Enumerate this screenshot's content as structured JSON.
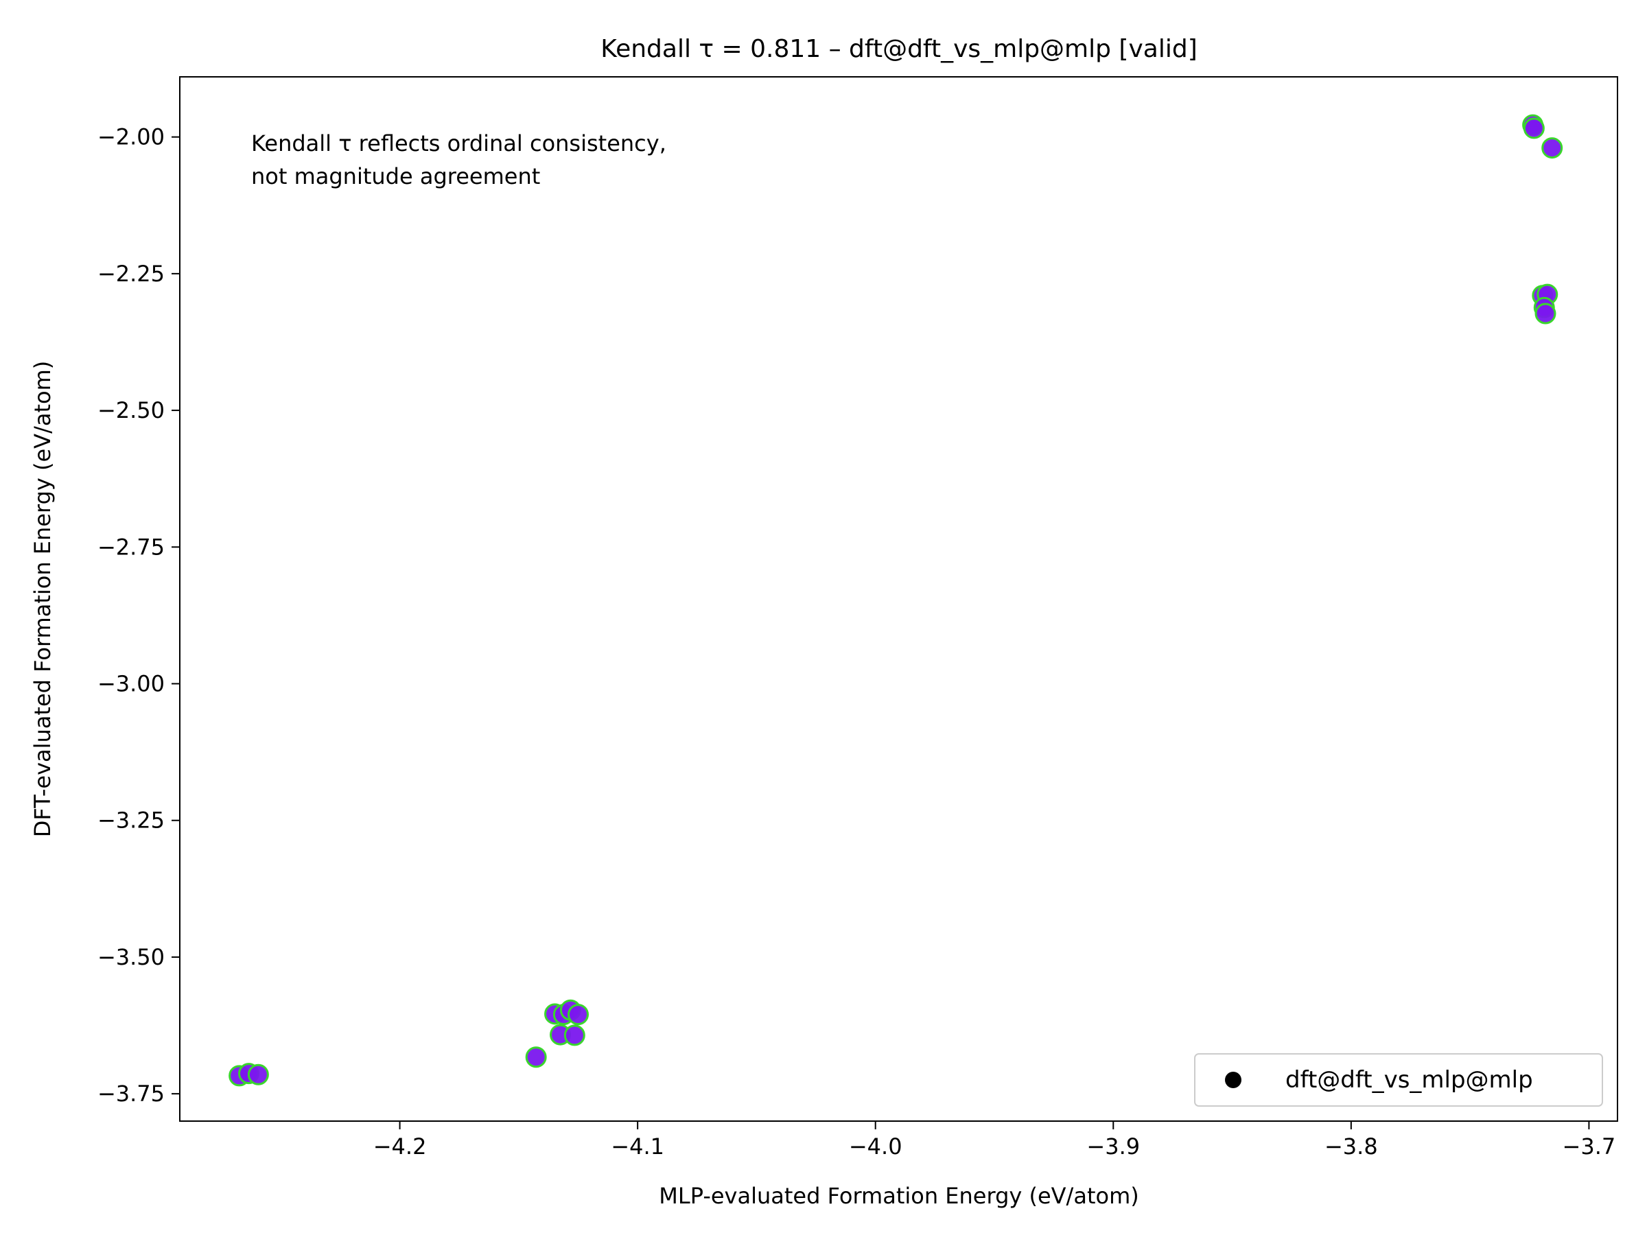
{
  "chart_data": {
    "type": "scatter",
    "title": "Kendall τ = 0.811 – dft@dft_vs_mlp@mlp [valid]",
    "xlabel": "MLP-evaluated Formation Energy (eV/atom)",
    "ylabel": "DFT-evaluated Formation Energy (eV/atom)",
    "xlim": [
      -4.2925,
      -3.688
    ],
    "ylim": [
      -3.8,
      -1.89
    ],
    "xticks": [
      -4.2,
      -4.1,
      -4.0,
      -3.9,
      -3.8,
      -3.7
    ],
    "xtick_labels": [
      "−4.2",
      "−4.1",
      "−4.0",
      "−3.9",
      "−3.8",
      "−3.7"
    ],
    "yticks": [
      -2.0,
      -2.25,
      -2.5,
      -2.75,
      -3.0,
      -3.25,
      -3.5,
      -3.75
    ],
    "ytick_labels": [
      "−2.00",
      "−2.25",
      "−2.50",
      "−2.75",
      "−3.00",
      "−3.25",
      "−3.50",
      "−3.75"
    ],
    "annotation": [
      "Kendall τ reflects ordinal consistency,",
      "not magnitude agreement"
    ],
    "legend": {
      "label": "dft@dft_vs_mlp@mlp",
      "position": "lower-right"
    },
    "grid": false,
    "series": [
      {
        "name": "dft@dft_vs_mlp@mlp",
        "marker_fill": "#7a17ee",
        "marker_edge": "#3ad62c",
        "points": [
          {
            "x": -4.2675,
            "y": -3.717
          },
          {
            "x": -4.2635,
            "y": -3.713
          },
          {
            "x": -4.2595,
            "y": -3.715
          },
          {
            "x": -4.1427,
            "y": -3.683
          },
          {
            "x": -4.1348,
            "y": -3.604
          },
          {
            "x": -4.1325,
            "y": -3.642
          },
          {
            "x": -4.1311,
            "y": -3.605
          },
          {
            "x": -4.1282,
            "y": -3.597
          },
          {
            "x": -4.1265,
            "y": -3.643
          },
          {
            "x": -4.125,
            "y": -3.605
          },
          {
            "x": -3.7236,
            "y": -1.978
          },
          {
            "x": -3.7231,
            "y": -1.984
          },
          {
            "x": -3.7155,
            "y": -2.02
          },
          {
            "x": -3.7195,
            "y": -2.29
          },
          {
            "x": -3.7175,
            "y": -2.288
          },
          {
            "x": -3.7188,
            "y": -2.312
          },
          {
            "x": -3.7183,
            "y": -2.323
          }
        ]
      }
    ]
  }
}
